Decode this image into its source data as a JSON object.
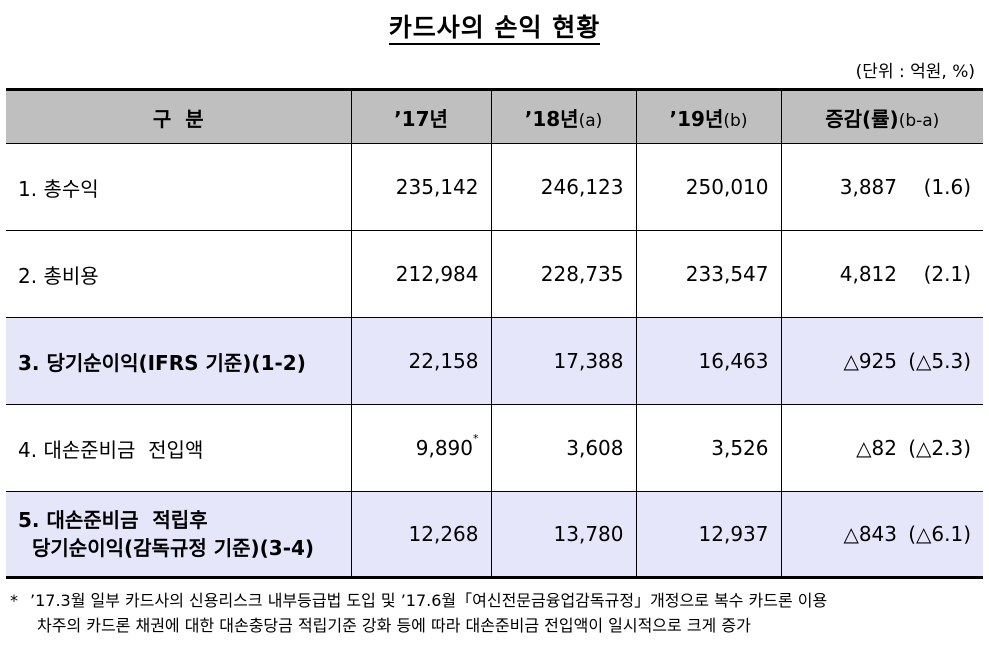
{
  "title": "카드사의 손익 현황",
  "unit": "(단위 : 억원, %)",
  "header": {
    "col0": "구  분",
    "col1": "’17년",
    "col2_main": "’18년",
    "col2_sub": "(a)",
    "col3_main": "’19년",
    "col3_sub": "(b)",
    "col4_main": "증감(률)",
    "col4_sub": "(b-a)"
  },
  "rows": [
    {
      "label": "1. 총수익",
      "v17": "235,142",
      "v18": "246,123",
      "v19": "250,010",
      "diff": "3,887",
      "rate": "(1.6)"
    },
    {
      "label": "2. 총비용",
      "v17": "212,984",
      "v18": "228,735",
      "v19": "233,547",
      "diff": "4,812",
      "rate": "(2.1)"
    },
    {
      "label": "3. 당기순이익(IFRS 기준)(1-2)",
      "v17": "22,158",
      "v18": "17,388",
      "v19": "16,463",
      "diff": "△925",
      "rate": "(△5.3)"
    },
    {
      "label": "4. 대손준비금  전입액",
      "v17": "9,890",
      "v17_mark": "*",
      "v18": "3,608",
      "v19": "3,526",
      "diff": "△82",
      "rate": "(△2.3)"
    },
    {
      "label_line1": "5. 대손준비금  적립후",
      "label_line2": "당기순이익(감독규정 기준)(3-4)",
      "v17": "12,268",
      "v18": "13,780",
      "v19": "12,937",
      "diff": "△843",
      "rate": "(△6.1)"
    }
  ],
  "footnote": {
    "mark": "*",
    "line1": "’17.3월 일부 카드사의 신용리스크 내부등급법 도입 및 ’17.6월「여신전문금융업감독규정」개정으로 복수 카드론 이용",
    "line2": "차주의 카드론 채권에 대한 대손충당금 적립기준 강화 등에 따라 대손준비금 전입액이 일시적으로 크게 증가"
  }
}
